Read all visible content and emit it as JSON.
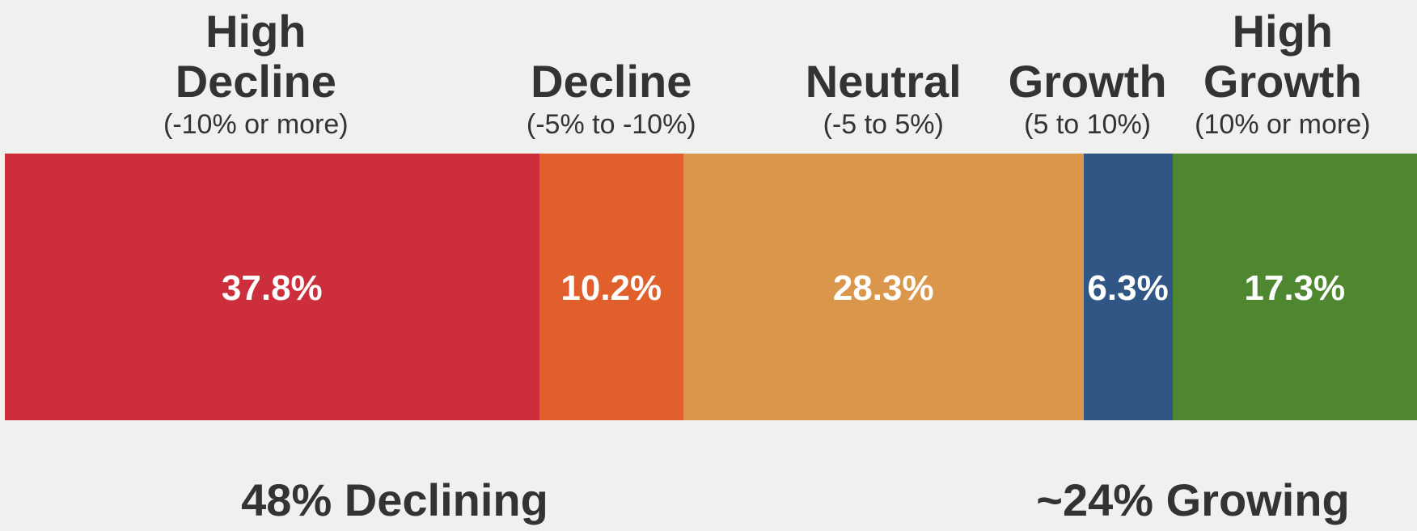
{
  "chart_data": {
    "type": "stacked_bar",
    "series": [
      {
        "name": "High Decline",
        "range": "(-10% or more)",
        "color": "#cc2f3b",
        "values": [
          37.8
        ],
        "value_labels": [
          "37.8%"
        ]
      },
      {
        "name": "Decline",
        "range": "(-5% to -10%)",
        "color": "#e05f2a",
        "values": [
          10.2
        ],
        "value_labels": [
          "10.2%"
        ]
      },
      {
        "name": "Neutral",
        "range": "(-5 to 5%)",
        "color": "#da974c",
        "values": [
          28.3
        ],
        "value_labels": [
          "28.3%"
        ]
      },
      {
        "name": "Growth",
        "range": "(5 to 10%)",
        "color": "#2f5684",
        "values": [
          6.3
        ],
        "value_labels": [
          "6.3%"
        ]
      },
      {
        "name": "High Growth",
        "range": "(10% or more)",
        "color": "#4f8630",
        "values": [
          17.3
        ],
        "value_labels": [
          "17.3%"
        ]
      }
    ],
    "annotations": [
      "48% Declining",
      "~24% Growing"
    ]
  }
}
